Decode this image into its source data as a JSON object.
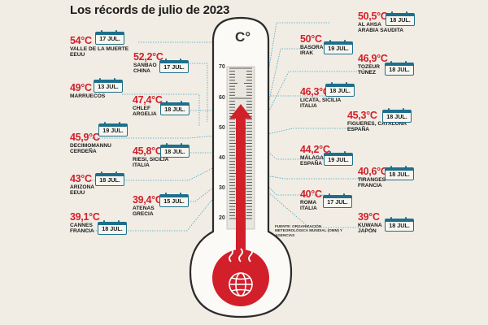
{
  "title": "Los récords de julio de 2023",
  "thermometer": {
    "unit": "C°",
    "scale": [
      "70",
      "60",
      "50",
      "40",
      "30",
      "20"
    ],
    "source": "FUENTE: ORGANIZACIÓN METEOROLÓGICA MUNDIAL (OMM) Y AGENCIAS"
  },
  "records": [
    {
      "temp": "54°C",
      "date": "17 JUL.",
      "place1": "VALLE DE LA MUERTE",
      "place2": "EEUU"
    },
    {
      "temp": "52,2°C",
      "date": "17 JUL.",
      "place1": "SANBAO",
      "place2": "CHINA"
    },
    {
      "temp": "49°C",
      "date": "13 JUL.",
      "place1": "MARRUECOS",
      "place2": ""
    },
    {
      "temp": "47,4°C",
      "date": "18 JUL.",
      "place1": "CHLEF",
      "place2": "ARGELIA"
    },
    {
      "temp": "45,9°C",
      "date": "19 JUL.",
      "place1": "DECIMOMANNU",
      "place2": "CERDEÑA"
    },
    {
      "temp": "45,8°C",
      "date": "18 JUL.",
      "place1": "RIESI, SICILIA",
      "place2": "ITALIA"
    },
    {
      "temp": "43°C",
      "date": "18 JUL.",
      "place1": "ARIZONA",
      "place2": "EEUU"
    },
    {
      "temp": "39,4°C",
      "date": "15 JUL.",
      "place1": "ATENAS",
      "place2": "GRECIA"
    },
    {
      "temp": "39,1°C",
      "date": "18 JUL.",
      "place1": "CANNES",
      "place2": "FRANCIA"
    },
    {
      "temp": "50,5°C",
      "date": "18 JUL.",
      "place1": "AL AHSA",
      "place2": "ARABIA SAUDITA"
    },
    {
      "temp": "50°C",
      "date": "19 JUL.",
      "place1": "BASORA",
      "place2": "IRAK"
    },
    {
      "temp": "46,9°C",
      "date": "18 JUL.",
      "place1": "TOZEUR",
      "place2": "TÚNEZ"
    },
    {
      "temp": "46,3°C",
      "date": "18 JUL.",
      "place1": "LICATA, SICILIA",
      "place2": "ITALIA"
    },
    {
      "temp": "45,3°C",
      "date": "18 JUL.",
      "place1": "FIGUERES, CATALUÑA",
      "place2": "ESPAÑA"
    },
    {
      "temp": "44,2°C",
      "date": "19 JUL.",
      "place1": "MÁLAGA",
      "place2": "ESPAÑA"
    },
    {
      "temp": "40,6°C",
      "date": "18 JUL.",
      "place1": "TIRANGES",
      "place2": "FRANCIA"
    },
    {
      "temp": "40°C",
      "date": "17 JUL.",
      "place1": "ROMA",
      "place2": "ITALIA"
    },
    {
      "temp": "39°C",
      "date": "18 JUL.",
      "place1": "KUWANA",
      "place2": "JAPÓN"
    }
  ],
  "colors": {
    "red": "#d2202a",
    "calendar": "#1e6f8c",
    "background": "#f1ede4"
  }
}
